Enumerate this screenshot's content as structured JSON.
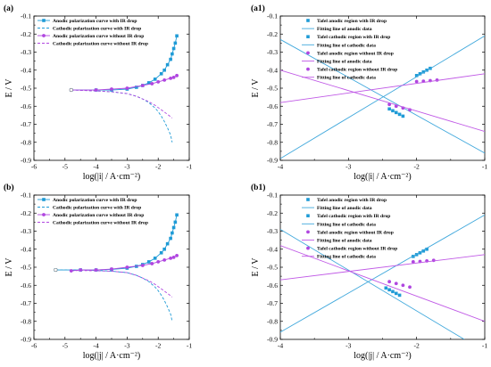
{
  "colors": {
    "blue": "#1f9bd6",
    "purple": "#b046e0",
    "blue_line": "#40a8dc",
    "purple_line": "#c05ae6",
    "axis": "#000000"
  },
  "chart_data": [
    {
      "type": "line",
      "panel_label": "(a)",
      "xlabel": "log(|i| / A·cm⁻²)",
      "ylabel": "E / V",
      "xlim": [
        -6,
        -1
      ],
      "ylim": [
        -0.9,
        -0.1
      ],
      "xticks": [
        -6,
        -5,
        -4,
        -3,
        -2,
        -1
      ],
      "yticks": [
        -0.9,
        -0.8,
        -0.7,
        -0.6,
        -0.5,
        -0.4,
        -0.3,
        -0.2,
        -0.1
      ],
      "legend_position": "top-left",
      "series": [
        {
          "name": "Anodic polarization curve with IR drop",
          "color": "blue",
          "marker": "square",
          "line": "solid",
          "x": [
            -4.8,
            -4,
            -3.5,
            -3,
            -2.7,
            -2.5,
            -2.3,
            -2.1,
            -1.9,
            -1.8,
            -1.7,
            -1.6,
            -1.55,
            -1.5,
            -1.45,
            -1.4
          ],
          "y": [
            -0.51,
            -0.51,
            -0.51,
            -0.505,
            -0.495,
            -0.485,
            -0.47,
            -0.45,
            -0.42,
            -0.4,
            -0.37,
            -0.34,
            -0.31,
            -0.28,
            -0.25,
            -0.21
          ]
        },
        {
          "name": "Cathodic polarization curve with IR drop",
          "color": "blue",
          "marker": "none",
          "line": "dashed",
          "x": [
            -4.8,
            -4,
            -3.5,
            -3,
            -2.7,
            -2.5,
            -2.3,
            -2.1,
            -2,
            -1.9,
            -1.8,
            -1.7,
            -1.6,
            -1.55
          ],
          "y": [
            -0.51,
            -0.515,
            -0.52,
            -0.53,
            -0.545,
            -0.56,
            -0.58,
            -0.61,
            -0.63,
            -0.655,
            -0.685,
            -0.72,
            -0.76,
            -0.8
          ]
        },
        {
          "name": "Anodic polarization curve without IR drop",
          "color": "purple",
          "marker": "circle",
          "line": "solid",
          "x": [
            -4.8,
            -4,
            -3.5,
            -3,
            -2.5,
            -2.2,
            -2,
            -1.8,
            -1.6,
            -1.5,
            -1.4
          ],
          "y": [
            -0.51,
            -0.51,
            -0.505,
            -0.5,
            -0.485,
            -0.475,
            -0.465,
            -0.455,
            -0.445,
            -0.44,
            -0.43
          ]
        },
        {
          "name": "Cathodic polarization curve without IR drop",
          "color": "purple",
          "marker": "none",
          "line": "dashed",
          "x": [
            -4.8,
            -4,
            -3.5,
            -3,
            -2.7,
            -2.5,
            -2.3,
            -2.1,
            -1.9,
            -1.7,
            -1.55
          ],
          "y": [
            -0.51,
            -0.515,
            -0.52,
            -0.53,
            -0.545,
            -0.56,
            -0.575,
            -0.595,
            -0.62,
            -0.645,
            -0.665
          ]
        }
      ]
    },
    {
      "type": "line",
      "panel_label": "(a1)",
      "xlabel": "log(|i| / A·cm⁻²)",
      "ylabel": "E / V",
      "xlim": [
        -4,
        -1
      ],
      "ylim": [
        -0.9,
        -0.1
      ],
      "xticks": [
        -4,
        -3,
        -2,
        -1
      ],
      "yticks": [
        -0.9,
        -0.8,
        -0.7,
        -0.6,
        -0.5,
        -0.4,
        -0.3,
        -0.2,
        -0.1
      ],
      "legend_position": "top-center",
      "series": [
        {
          "name": "Tafel anodic region with IR drop",
          "color": "blue",
          "marker": "square",
          "line": "none",
          "x": [
            -2,
            -1.95,
            -1.9,
            -1.85,
            -1.8
          ],
          "y": [
            -0.43,
            -0.42,
            -0.41,
            -0.4,
            -0.39
          ]
        },
        {
          "name": "Fitting line of anodic data",
          "color": "blue",
          "marker": "none",
          "line": "solid",
          "x": [
            -4,
            -1
          ],
          "y": [
            -0.89,
            -0.21
          ]
        },
        {
          "name": "Tafel cathodic region with IR drop",
          "color": "blue",
          "marker": "square",
          "line": "none",
          "x": [
            -2.4,
            -2.35,
            -2.3,
            -2.25,
            -2.2
          ],
          "y": [
            -0.615,
            -0.625,
            -0.635,
            -0.645,
            -0.655
          ]
        },
        {
          "name": "Fitting line of cathodic data",
          "color": "blue",
          "marker": "none",
          "line": "solid",
          "x": [
            -4,
            -1
          ],
          "y": [
            -0.23,
            -0.86
          ]
        },
        {
          "name": "Tafel anodic region without IR drop",
          "color": "purple",
          "marker": "circle",
          "line": "none",
          "x": [
            -2,
            -1.9,
            -1.8,
            -1.7
          ],
          "y": [
            -0.463,
            -0.461,
            -0.458,
            -0.455
          ]
        },
        {
          "name": "Fitting line of anodic data",
          "color": "purple",
          "marker": "none",
          "line": "solid",
          "x": [
            -4,
            -1
          ],
          "y": [
            -0.58,
            -0.42
          ]
        },
        {
          "name": "Tafel cathodic region without IR drop",
          "color": "purple",
          "marker": "circle",
          "line": "none",
          "x": [
            -2.4,
            -2.3,
            -2.2,
            -2.1
          ],
          "y": [
            -0.59,
            -0.6,
            -0.61,
            -0.62
          ]
        },
        {
          "name": "Fitting line of cathodic data",
          "color": "purple",
          "marker": "none",
          "line": "solid",
          "x": [
            -4,
            -1
          ],
          "y": [
            -0.4,
            -0.74
          ]
        }
      ]
    },
    {
      "type": "line",
      "panel_label": "(b)",
      "xlabel": "log(|j| / A·cm⁻²)",
      "ylabel": "E / V",
      "xlim": [
        -6,
        -1
      ],
      "ylim": [
        -0.9,
        -0.1
      ],
      "xticks": [
        -6,
        -5,
        -4,
        -3,
        -2,
        -1
      ],
      "yticks": [
        -0.9,
        -0.8,
        -0.7,
        -0.6,
        -0.5,
        -0.4,
        -0.3,
        -0.2,
        -0.1
      ],
      "legend_position": "top-left",
      "series": [
        {
          "name": "Anodic polarization curve with IR drop",
          "color": "blue",
          "marker": "square",
          "line": "solid",
          "x": [
            -5.3,
            -4.5,
            -4,
            -3.5,
            -3,
            -2.7,
            -2.5,
            -2.3,
            -2.1,
            -1.9,
            -1.8,
            -1.7,
            -1.6,
            -1.55,
            -1.5,
            -1.45,
            -1.4
          ],
          "y": [
            -0.515,
            -0.515,
            -0.515,
            -0.512,
            -0.505,
            -0.495,
            -0.485,
            -0.47,
            -0.45,
            -0.42,
            -0.4,
            -0.37,
            -0.34,
            -0.31,
            -0.28,
            -0.25,
            -0.21
          ]
        },
        {
          "name": "Cathodic polarization curve with IR drop",
          "color": "blue",
          "marker": "none",
          "line": "dashed",
          "x": [
            -5.3,
            -4.5,
            -4,
            -3.5,
            -3,
            -2.7,
            -2.5,
            -2.3,
            -2.1,
            -2,
            -1.9,
            -1.8,
            -1.7,
            -1.6,
            -1.55
          ],
          "y": [
            -0.515,
            -0.515,
            -0.518,
            -0.522,
            -0.53,
            -0.545,
            -0.56,
            -0.58,
            -0.61,
            -0.63,
            -0.655,
            -0.685,
            -0.72,
            -0.76,
            -0.8
          ]
        },
        {
          "name": "Anodic polarization curve without IR drop",
          "color": "purple",
          "marker": "circle",
          "line": "solid",
          "x": [
            -4.8,
            -4.5,
            -4,
            -3.5,
            -3,
            -2.5,
            -2.2,
            -2,
            -1.8,
            -1.6,
            -1.5,
            -1.4
          ],
          "y": [
            -0.52,
            -0.515,
            -0.515,
            -0.51,
            -0.5,
            -0.49,
            -0.48,
            -0.47,
            -0.46,
            -0.45,
            -0.445,
            -0.435
          ]
        },
        {
          "name": "Cathodic polarization curve without IR drop",
          "color": "purple",
          "marker": "none",
          "line": "dashed",
          "x": [
            -4.8,
            -4.5,
            -4,
            -3.5,
            -3,
            -2.7,
            -2.5,
            -2.3,
            -2.1,
            -1.9,
            -1.7,
            -1.55
          ],
          "y": [
            -0.52,
            -0.518,
            -0.52,
            -0.522,
            -0.53,
            -0.545,
            -0.56,
            -0.575,
            -0.595,
            -0.62,
            -0.645,
            -0.665
          ]
        }
      ]
    },
    {
      "type": "line",
      "panel_label": "(b1)",
      "xlabel": "log(|j| / A·cm⁻²)",
      "ylabel": "E / V",
      "xlim": [
        -4,
        -1
      ],
      "ylim": [
        -0.9,
        -0.1
      ],
      "xticks": [
        -4,
        -3,
        -2,
        -1
      ],
      "yticks": [
        -0.9,
        -0.8,
        -0.7,
        -0.6,
        -0.5,
        -0.4,
        -0.3,
        -0.2,
        -0.1
      ],
      "legend_position": "top-center",
      "series": [
        {
          "name": "Tafel anodic region with IR drop",
          "color": "blue",
          "marker": "square",
          "line": "none",
          "x": [
            -2.05,
            -2,
            -1.95,
            -1.9,
            -1.85
          ],
          "y": [
            -0.44,
            -0.43,
            -0.42,
            -0.41,
            -0.4
          ]
        },
        {
          "name": "Fitting line of anodic data",
          "color": "blue",
          "marker": "none",
          "line": "solid",
          "x": [
            -4,
            -1
          ],
          "y": [
            -0.86,
            -0.21
          ]
        },
        {
          "name": "Tafel cathodic region with IR drop",
          "color": "blue",
          "marker": "square",
          "line": "none",
          "x": [
            -2.45,
            -2.4,
            -2.35,
            -2.3,
            -2.25
          ],
          "y": [
            -0.615,
            -0.625,
            -0.635,
            -0.645,
            -0.655
          ]
        },
        {
          "name": "Fitting line of cathodic data",
          "color": "blue",
          "marker": "none",
          "line": "solid",
          "x": [
            -4,
            -1.3
          ],
          "y": [
            -0.29,
            -0.9
          ]
        },
        {
          "name": "Tafel anodic region without IR drop",
          "color": "purple",
          "marker": "circle",
          "line": "none",
          "x": [
            -2.05,
            -1.95,
            -1.85,
            -1.75
          ],
          "y": [
            -0.47,
            -0.468,
            -0.465,
            -0.462
          ]
        },
        {
          "name": "Fitting line of anodic data",
          "color": "purple",
          "marker": "none",
          "line": "solid",
          "x": [
            -4,
            -1
          ],
          "y": [
            -0.57,
            -0.43
          ]
        },
        {
          "name": "Tafel cathodic region without IR drop",
          "color": "purple",
          "marker": "circle",
          "line": "none",
          "x": [
            -2.4,
            -2.3,
            -2.2,
            -2.1
          ],
          "y": [
            -0.58,
            -0.59,
            -0.6,
            -0.61
          ]
        },
        {
          "name": "Fitting line of cathodic data",
          "color": "purple",
          "marker": "none",
          "line": "solid",
          "x": [
            -4,
            -1
          ],
          "y": [
            -0.38,
            -0.8
          ]
        }
      ]
    }
  ]
}
